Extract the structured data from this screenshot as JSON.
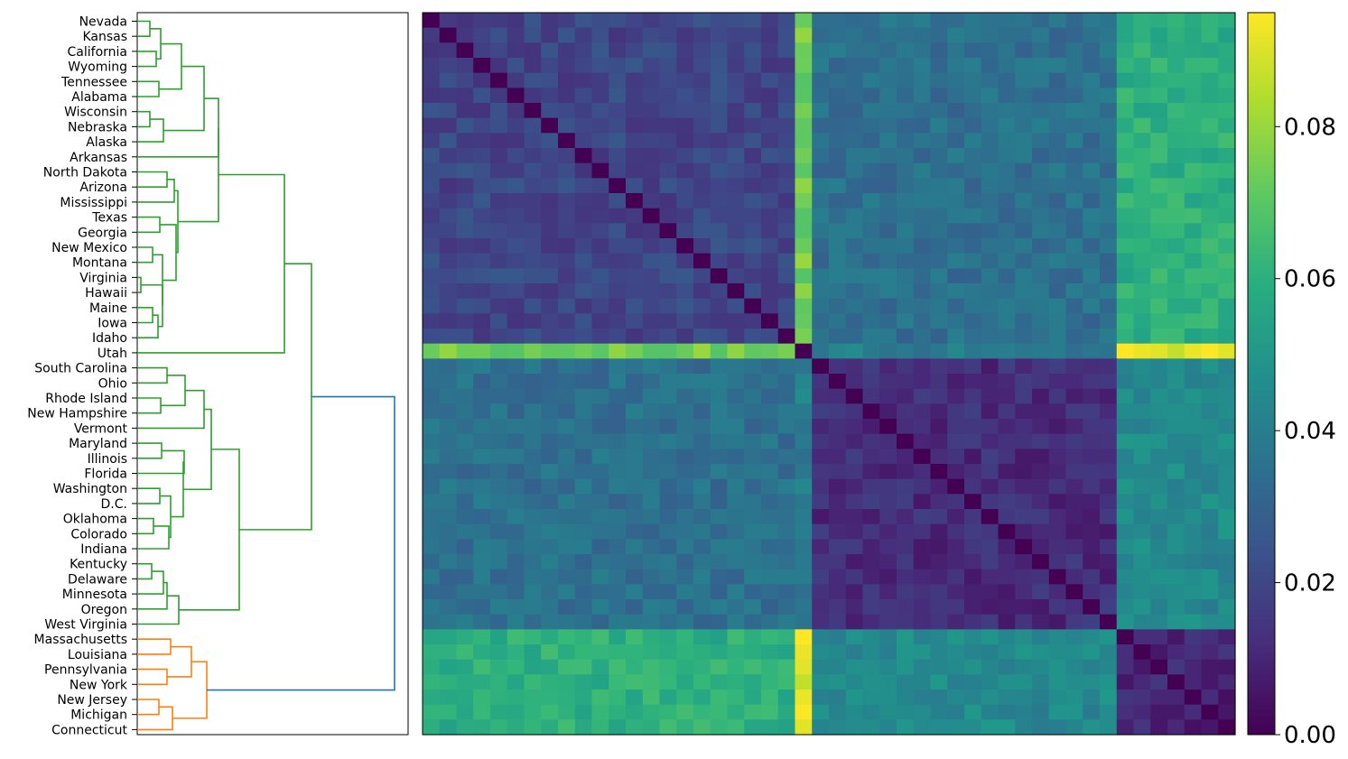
{
  "chart_data": {
    "type": "heatmap",
    "title": "",
    "xlabel": "",
    "ylabel": "",
    "leaves": [
      "Nevada",
      "Kansas",
      "California",
      "Wyoming",
      "Tennessee",
      "Alabama",
      "Wisconsin",
      "Nebraska",
      "Alaska",
      "Arkansas",
      "North Dakota",
      "Arizona",
      "Mississippi",
      "Texas",
      "Georgia",
      "New Mexico",
      "Montana",
      "Virginia",
      "Hawaii",
      "Maine",
      "Iowa",
      "Idaho",
      "Utah",
      "South Carolina",
      "Ohio",
      "Rhode Island",
      "New Hampshire",
      "Vermont",
      "Maryland",
      "Illinois",
      "Florida",
      "Washington",
      "D.C.",
      "Oklahoma",
      "Colorado",
      "Indiana",
      "Kentucky",
      "Delaware",
      "Minnesota",
      "Oregon",
      "West Virginia",
      "Massachusetts",
      "Louisiana",
      "Pennsylvania",
      "New York",
      "New Jersey",
      "Michigan",
      "Connecticut"
    ],
    "cluster_colors": {
      "green": "#2ca02c",
      "orange": "#ff7f0e",
      "root": "#1f77b4"
    },
    "colorbar": {
      "colormap": "viridis",
      "range": [
        0.0,
        0.095
      ],
      "tick_values": [
        0.0,
        0.02,
        0.04,
        0.06,
        0.08
      ],
      "tick_labels": [
        "0.00",
        "0.02",
        "0.04",
        "0.06",
        "0.08"
      ]
    },
    "block_means": {
      "groups": [
        "top-green (Nevada–Idaho)",
        "Utah",
        "bottom-green (South Carolina–West Virginia)",
        "orange (Massachusetts–Connecticut)"
      ],
      "matrix": [
        [
          0.02,
          0.075,
          0.035,
          0.06
        ],
        [
          0.075,
          0.0,
          0.04,
          0.09
        ],
        [
          0.035,
          0.04,
          0.012,
          0.045
        ],
        [
          0.06,
          0.09,
          0.045,
          0.01
        ]
      ]
    }
  }
}
